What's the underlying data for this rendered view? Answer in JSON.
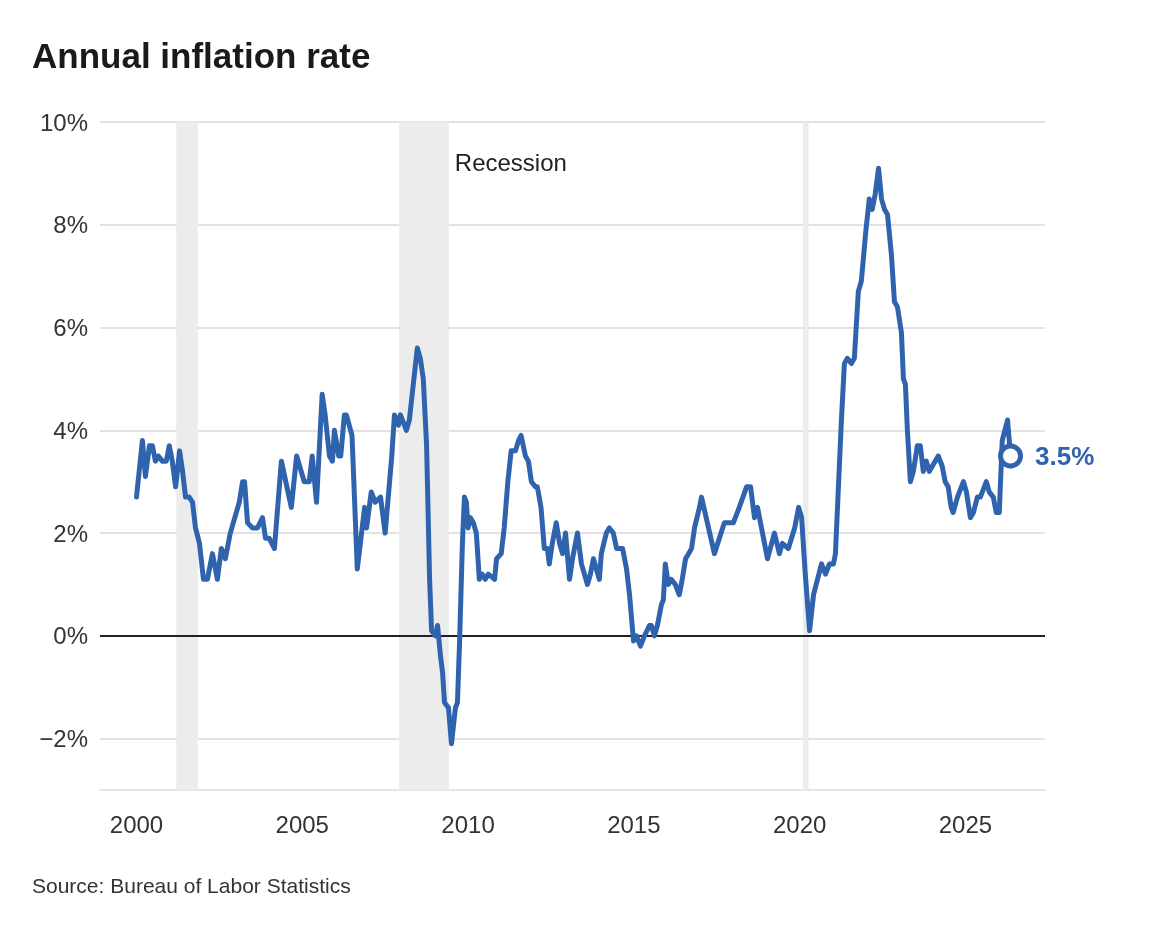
{
  "chart_data": {
    "type": "line",
    "title": "Annual inflation rate",
    "annotations": [
      "Source: Bureau of Labor Statistics"
    ],
    "xlim": [
      1998.9,
      2027.4
    ],
    "xticks": [
      2000,
      2005,
      2010,
      2015,
      2020,
      2025
    ],
    "ylim": [
      -3,
      10
    ],
    "yticks": [
      {
        "value": -2,
        "label": "−2%"
      },
      {
        "value": 0,
        "label": "0%"
      },
      {
        "value": 2,
        "label": "2%"
      },
      {
        "value": 4,
        "label": "4%"
      },
      {
        "value": 6,
        "label": "6%"
      },
      {
        "value": 8,
        "label": "8%"
      },
      {
        "value": 10,
        "label": "10%"
      }
    ],
    "grid": "y",
    "marker": "none",
    "ref_lines": [
      {
        "axis": "y",
        "value": 0,
        "color": "#222222"
      }
    ],
    "bands": [
      {
        "axis": "x",
        "from": 2001.2,
        "to": 2001.85,
        "color": "#ececec"
      },
      {
        "axis": "x",
        "from": 2007.92,
        "to": 2009.42,
        "label": "Recession",
        "color": "#ececec"
      },
      {
        "axis": "x",
        "from": 2020.1,
        "to": 2020.27,
        "color": "#ececec"
      }
    ],
    "series": [
      {
        "color": "#3063ad",
        "x": [
          2000.0,
          2000.18,
          2000.27,
          2000.39,
          2000.48,
          2000.57,
          2000.66,
          2000.78,
          2000.9,
          2000.99,
          2001.08,
          2001.18,
          2001.3,
          2001.39,
          2001.48,
          2001.59,
          2001.69,
          2001.78,
          2001.9,
          2002.02,
          2002.14,
          2002.29,
          2002.44,
          2002.56,
          2002.68,
          2002.83,
          2003.1,
          2003.2,
          2003.26,
          2003.35,
          2003.5,
          2003.65,
          2003.8,
          2003.89,
          2004.0,
          2004.16,
          2004.37,
          2004.67,
          2004.83,
          2005.06,
          2005.21,
          2005.3,
          2005.43,
          2005.6,
          2005.69,
          2005.82,
          2005.91,
          2005.97,
          2006.1,
          2006.16,
          2006.27,
          2006.33,
          2006.5,
          2006.66,
          2006.88,
          2006.94,
          2007.08,
          2007.2,
          2007.36,
          2007.5,
          2007.7,
          2007.78,
          2007.9,
          2007.96,
          2008.14,
          2008.23,
          2008.47,
          2008.56,
          2008.65,
          2008.75,
          2008.84,
          2008.9,
          2009.02,
          2009.08,
          2009.17,
          2009.23,
          2009.29,
          2009.41,
          2009.5,
          2009.62,
          2009.68,
          2009.74,
          2009.83,
          2009.89,
          2009.95,
          2010.0,
          2010.07,
          2010.16,
          2010.25,
          2010.34,
          2010.43,
          2010.52,
          2010.61,
          2010.8,
          2010.86,
          2011.0,
          2011.09,
          2011.2,
          2011.3,
          2011.43,
          2011.52,
          2011.6,
          2011.73,
          2011.82,
          2011.91,
          2012.03,
          2012.09,
          2012.2,
          2012.3,
          2012.39,
          2012.45,
          2012.54,
          2012.66,
          2012.76,
          2012.85,
          2012.94,
          2013.06,
          2013.15,
          2013.3,
          2013.42,
          2013.6,
          2013.69,
          2013.78,
          2013.96,
          2014.02,
          2014.17,
          2014.26,
          2014.38,
          2014.48,
          2014.66,
          2014.78,
          2014.87,
          2014.99,
          2015.08,
          2015.2,
          2015.32,
          2015.47,
          2015.53,
          2015.62,
          2015.71,
          2015.83,
          2015.89,
          2015.95,
          2016.04,
          2016.13,
          2016.25,
          2016.37,
          2016.46,
          2016.56,
          2016.65,
          2016.74,
          2016.83,
          2016.98,
          2017.04,
          2017.43,
          2017.73,
          2017.85,
          2018.0,
          2018.18,
          2018.4,
          2018.52,
          2018.64,
          2018.73,
          2019.0,
          2019.03,
          2019.24,
          2019.39,
          2019.48,
          2019.66,
          2019.85,
          2019.97,
          2020.06,
          2020.17,
          2020.3,
          2020.42,
          2020.66,
          2020.78,
          2020.9,
          2021.02,
          2021.08,
          2021.17,
          2021.26,
          2021.35,
          2021.44,
          2021.56,
          2021.65,
          2021.77,
          2021.86,
          2022.0,
          2022.1,
          2022.19,
          2022.28,
          2022.38,
          2022.47,
          2022.56,
          2022.65,
          2022.77,
          2022.86,
          2022.95,
          2023.07,
          2023.13,
          2023.19,
          2023.25,
          2023.34,
          2023.43,
          2023.55,
          2023.64,
          2023.73,
          2023.82,
          2023.91,
          2024.0,
          2024.18,
          2024.3,
          2024.39,
          2024.48,
          2024.57,
          2024.63,
          2024.76,
          2024.94,
          2025.03,
          2025.15,
          2025.24,
          2025.36,
          2025.45,
          2025.63,
          2025.72,
          2025.84,
          2025.93,
          2026.02,
          2026.11,
          2026.27,
          2026.36
        ],
        "values": [
          2.7,
          3.8,
          3.1,
          3.7,
          3.7,
          3.4,
          3.5,
          3.4,
          3.4,
          3.7,
          3.4,
          2.9,
          3.6,
          3.2,
          2.7,
          2.7,
          2.6,
          2.1,
          1.8,
          1.1,
          1.1,
          1.6,
          1.1,
          1.7,
          1.5,
          2.0,
          2.6,
          3.0,
          3.0,
          2.2,
          2.1,
          2.1,
          2.3,
          1.9,
          1.9,
          1.7,
          3.4,
          2.5,
          3.5,
          3.0,
          3.0,
          3.5,
          2.6,
          4.7,
          4.3,
          3.5,
          3.4,
          4.0,
          3.5,
          3.5,
          4.3,
          4.3,
          3.9,
          1.3,
          2.5,
          2.1,
          2.8,
          2.6,
          2.7,
          2.0,
          3.5,
          4.3,
          4.1,
          4.3,
          4.0,
          4.2,
          5.6,
          5.4,
          5.0,
          3.7,
          1.1,
          0.1,
          0.0,
          0.2,
          -0.4,
          -0.7,
          -1.3,
          -1.4,
          -2.1,
          -1.4,
          -1.3,
          -0.2,
          1.8,
          2.7,
          2.6,
          2.1,
          2.3,
          2.2,
          2.0,
          1.1,
          1.2,
          1.1,
          1.2,
          1.1,
          1.5,
          1.6,
          2.1,
          3.0,
          3.6,
          3.6,
          3.8,
          3.9,
          3.5,
          3.4,
          3.0,
          2.9,
          2.9,
          2.5,
          1.7,
          1.7,
          1.4,
          1.8,
          2.2,
          1.8,
          1.6,
          2.0,
          1.1,
          1.5,
          2.0,
          1.4,
          1.0,
          1.2,
          1.5,
          1.1,
          1.6,
          2.0,
          2.1,
          2.0,
          1.7,
          1.7,
          1.3,
          0.8,
          -0.1,
          0.0,
          -0.2,
          0.0,
          0.2,
          0.2,
          0.0,
          0.2,
          0.6,
          0.7,
          1.4,
          1.0,
          1.1,
          1.0,
          0.8,
          1.1,
          1.5,
          1.6,
          1.7,
          2.1,
          2.5,
          2.7,
          1.6,
          2.2,
          2.2,
          2.2,
          2.5,
          2.9,
          2.9,
          2.3,
          2.5,
          1.6,
          1.5,
          2.0,
          1.6,
          1.8,
          1.7,
          2.1,
          2.5,
          2.3,
          1.2,
          0.1,
          0.8,
          1.4,
          1.2,
          1.4,
          1.4,
          1.6,
          2.9,
          4.2,
          5.3,
          5.4,
          5.3,
          5.4,
          6.7,
          6.9,
          7.9,
          8.5,
          8.3,
          8.6,
          9.1,
          8.5,
          8.3,
          8.2,
          7.4,
          6.5,
          6.4,
          5.9,
          5.0,
          4.9,
          4.0,
          3.0,
          3.2,
          3.7,
          3.7,
          3.2,
          3.4,
          3.2,
          3.3,
          3.5,
          3.3,
          3.0,
          2.9,
          2.5,
          2.4,
          2.7,
          3.0,
          2.8,
          2.3,
          2.4,
          2.7,
          2.7,
          3.0,
          2.8,
          2.7,
          2.4,
          2.4,
          3.8,
          4.2,
          3.5
        ],
        "value_labels": [
          null,
          null,
          null,
          null,
          null,
          null,
          null,
          null,
          null,
          null,
          null,
          null,
          null,
          null,
          null,
          null,
          null,
          null,
          null,
          null,
          null,
          null,
          null,
          null,
          null,
          null,
          null,
          null,
          null,
          null,
          null,
          null,
          null,
          null,
          null,
          null,
          null,
          null,
          null,
          null,
          null,
          null,
          null,
          null,
          null,
          null,
          null,
          null,
          null,
          null,
          null,
          null,
          null,
          null,
          null,
          null,
          null,
          null,
          null,
          null,
          null,
          null,
          null,
          null,
          null,
          null,
          null,
          null,
          null,
          null,
          null,
          null,
          null,
          null,
          null,
          null,
          null,
          null,
          null,
          null,
          null,
          null,
          null,
          null,
          null,
          null,
          null,
          null,
          null,
          null,
          null,
          null,
          null,
          null,
          null,
          null,
          null,
          null,
          null,
          null,
          null,
          null,
          null,
          null,
          null,
          null,
          null,
          null,
          null,
          null,
          null,
          null,
          null,
          null,
          null,
          null,
          null,
          null,
          null,
          null,
          null,
          null,
          null,
          null,
          null,
          null,
          null,
          null,
          null,
          null,
          null,
          null,
          null,
          null,
          null,
          null,
          null,
          null,
          null,
          null,
          null,
          null,
          null,
          null,
          null,
          null,
          null,
          null,
          null,
          null,
          null,
          null,
          null,
          null,
          null,
          null,
          null,
          null,
          null,
          null,
          null,
          null,
          null,
          null,
          null,
          null,
          null,
          null,
          null,
          null,
          null,
          null,
          null,
          null,
          null,
          null,
          null,
          null,
          null,
          null,
          null,
          null,
          null,
          null,
          null,
          null,
          null,
          null,
          null,
          null,
          null,
          null,
          null,
          null,
          null,
          null,
          null,
          null,
          null,
          null,
          null,
          null,
          null,
          null,
          null,
          null,
          null,
          null,
          null,
          null,
          null,
          null,
          null,
          null,
          null,
          null,
          null,
          null,
          null,
          null,
          null,
          null,
          null,
          null,
          null,
          null,
          null,
          null,
          null,
          null,
          null,
          "3.5%"
        ]
      }
    ]
  }
}
